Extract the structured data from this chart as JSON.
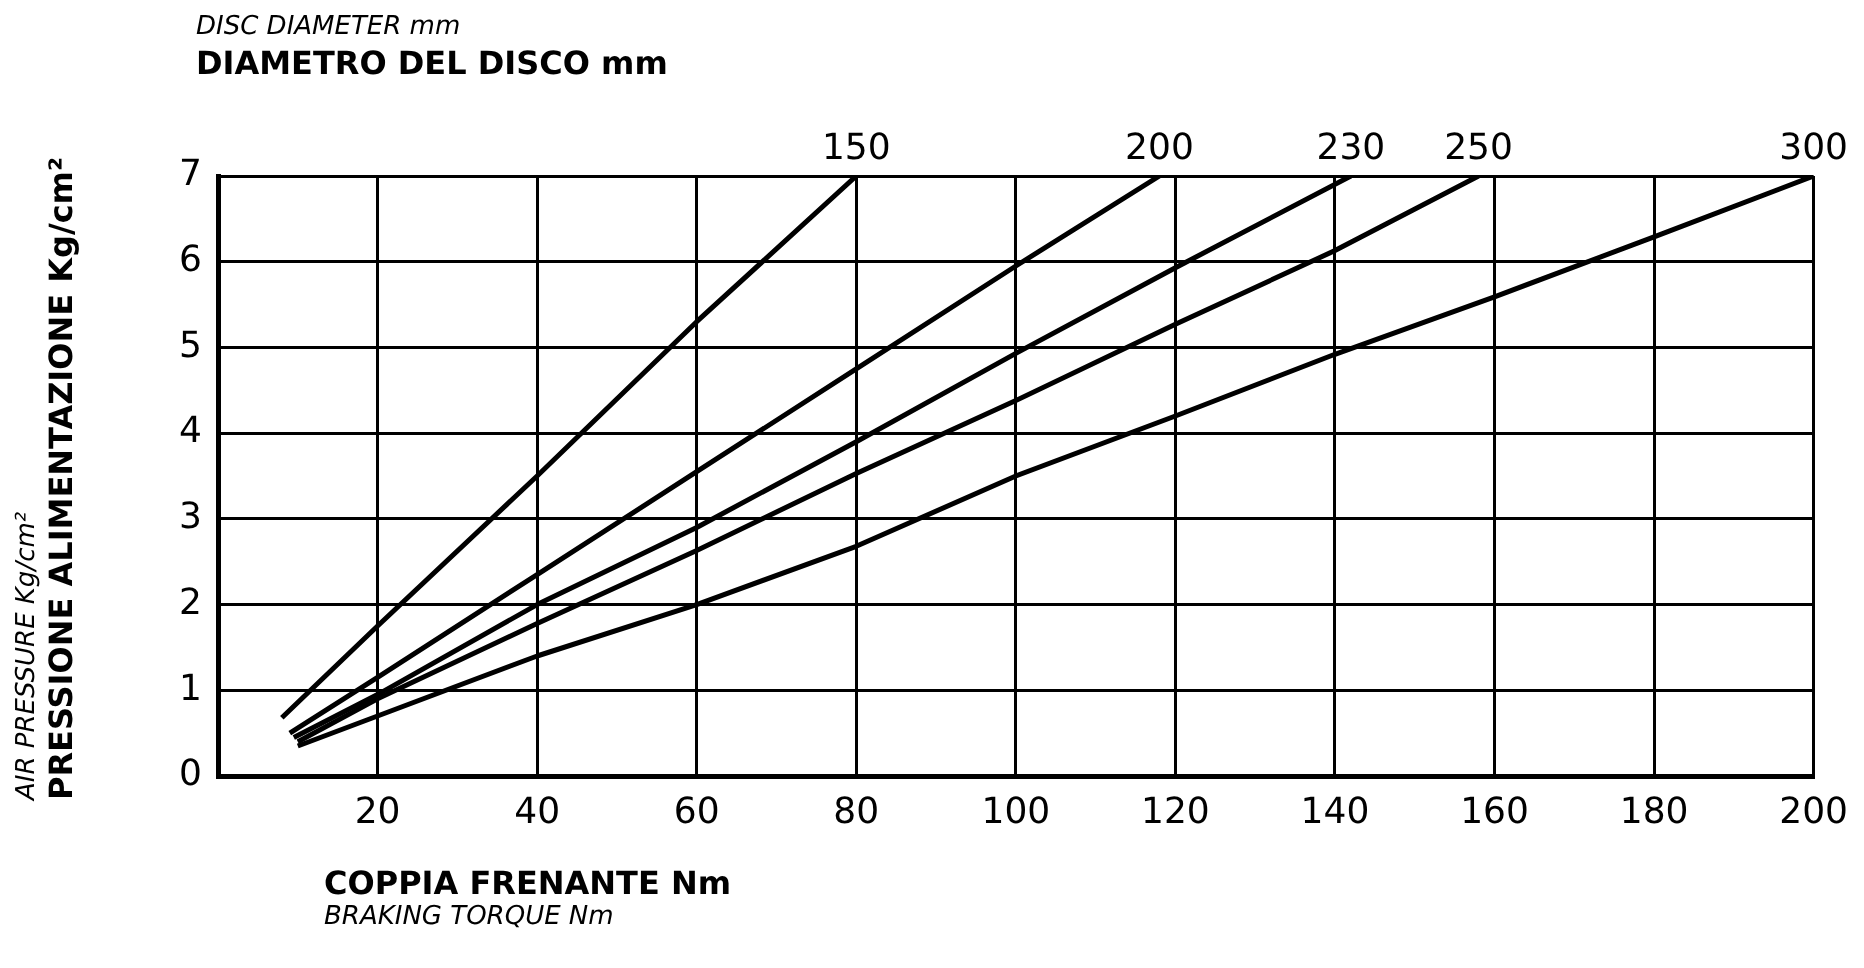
{
  "chart_data": {
    "type": "line",
    "title": "DIAMETRO DEL DISCO mm",
    "subtitle": "DISC DIAMETER mm",
    "xlabel": "COPPIA FRENANTE Nm\nBRAKING TORQUE Nm",
    "ylabel": "AIR PRESSURE Kg/cm²\nPRESSIONE ALIMENTAZIONE Kg/cm²",
    "xlim": [
      0,
      200
    ],
    "xticks": [
      20,
      40,
      60,
      80,
      100,
      120,
      140,
      160,
      180,
      200
    ],
    "ylim": [
      0,
      7
    ],
    "yticks": [
      0,
      1,
      2,
      3,
      4,
      5,
      6,
      7
    ],
    "grid": true,
    "legend": false,
    "marker": "none",
    "line_style": "solid",
    "series": [
      {
        "name": "150",
        "color": "#000000",
        "x": [
          8,
          20,
          40,
          60,
          80
        ],
        "values": [
          0.68,
          1.75,
          3.5,
          5.3,
          7
        ]
      },
      {
        "name": "200",
        "color": "#000000",
        "x": [
          9,
          20,
          40,
          60,
          80,
          100,
          118
        ],
        "values": [
          0.5,
          1.15,
          2.35,
          3.55,
          4.75,
          5.95,
          7
        ]
      },
      {
        "name": "230",
        "color": "#000000",
        "x": [
          9.5,
          20,
          40,
          60,
          80,
          100,
          120,
          142
        ],
        "values": [
          0.45,
          0.95,
          2,
          2.9,
          3.9,
          4.93,
          5.93,
          7
        ]
      },
      {
        "name": "250",
        "color": "#000000",
        "x": [
          10,
          20,
          40,
          60,
          80,
          100,
          120,
          140,
          158
        ],
        "values": [
          0.4,
          0.9,
          1.78,
          2.63,
          3.53,
          4.38,
          5.27,
          6.13,
          7
        ]
      },
      {
        "name": "300",
        "color": "#000000",
        "x": [
          10,
          20,
          40,
          60,
          80,
          100,
          120,
          140,
          160,
          180,
          200
        ],
        "values": [
          0.35,
          0.7,
          1.4,
          2,
          2.68,
          3.5,
          4.2,
          4.92,
          5.59,
          6.29,
          7
        ]
      }
    ]
  }
}
